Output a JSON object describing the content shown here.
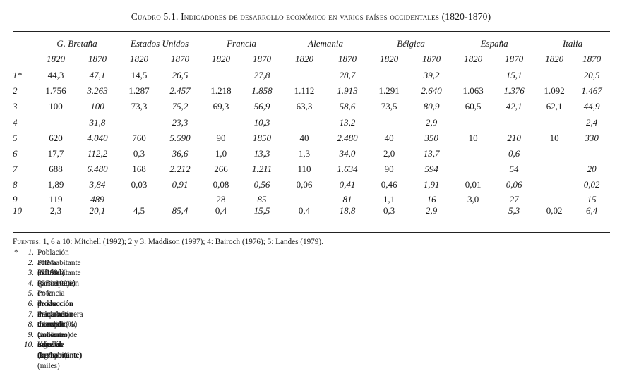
{
  "title": "Cuadro 5.1. Indicadores de desarrollo económico en varios países occidentales (1820-1870)",
  "countries": [
    "G. Bretaña",
    "Estados Unidos",
    "Francia",
    "Alemania",
    "Bélgica",
    "España",
    "Italia"
  ],
  "years": [
    "1820",
    "1870"
  ],
  "rows": [
    {
      "idx": "1*",
      "cells": [
        "44,3",
        "47,1",
        "14,5",
        "26,5",
        "",
        "27,8",
        "",
        "28,7",
        "",
        "39,2",
        "",
        "15,1",
        "",
        "20,5"
      ]
    },
    {
      "idx": "2",
      "cells": [
        "1.756",
        "3.263",
        "1.287",
        "2.457",
        "1.218",
        "1.858",
        "1.112",
        "1.913",
        "1.291",
        "2.640",
        "1.063",
        "1.376",
        "1.092",
        "1.467"
      ]
    },
    {
      "idx": "3",
      "cells": [
        "100",
        "100",
        "73,3",
        "75,2",
        "69,3",
        "56,9",
        "63,3",
        "58,6",
        "73,5",
        "80,9",
        "60,5",
        "42,1",
        "62,1",
        "44,9"
      ]
    },
    {
      "idx": "4",
      "cells": [
        "",
        "31,8",
        "",
        "23,3",
        "",
        "10,3",
        "",
        "13,2",
        "",
        "2,9",
        "",
        "",
        "",
        "2,4"
      ]
    },
    {
      "idx": "5",
      "cells": [
        "620",
        "4.040",
        "760",
        "5.590",
        "90",
        "1850",
        "40",
        "2.480",
        "40",
        "350",
        "10",
        "210",
        "10",
        "330"
      ]
    },
    {
      "idx": "6",
      "cells": [
        "17,7",
        "112,2",
        "0,3",
        "36,6",
        "1,0",
        "13,3",
        "1,3",
        "34,0",
        "2,0",
        "13,7",
        "",
        "0,6",
        "",
        ""
      ]
    },
    {
      "idx": "7",
      "cells": [
        "688",
        "6.480",
        "168",
        "2.212",
        "266",
        "1.211",
        "110",
        "1.634",
        "90",
        "594",
        "",
        "54",
        "",
        "20"
      ]
    },
    {
      "idx": "8",
      "cells": [
        "1,89",
        "3,84",
        "0,03",
        "0,91",
        "0,08",
        "0,56",
        "0,06",
        "0,41",
        "0,46",
        "1,91",
        "0,01",
        "0,06",
        "",
        "0,02"
      ]
    },
    {
      "idx": "9",
      "cells": [
        "119",
        "489",
        "",
        "",
        "28",
        "85",
        "",
        "81",
        "1,1",
        "16",
        "3,0",
        "27",
        "",
        "15"
      ]
    },
    {
      "idx": "10",
      "cells": [
        "2,3",
        "20,1",
        "4,5",
        "85,4",
        "0,4",
        "15,5",
        "0,4",
        "18,8",
        "0,3",
        "2,9",
        "",
        "5,3",
        "0,02",
        "6,4"
      ]
    }
  ],
  "sources_label": "Fuentes",
  "sources_text": ": 1, 6 a 10: Mitchell (1992); 2 y 3: Maddison (1997); 4: Bairoch (1976); 5: Landes (1979).",
  "notes_star": "*",
  "notes": [
    {
      "n": "1.",
      "text": "Población activa industrial (porcentaje)"
    },
    {
      "n": "2.",
      "text": "PIB/habitante ($ 1990)"
    },
    {
      "n": "3.",
      "text": "PIB/habitante (GB=100)"
    },
    {
      "n": "4.",
      "text": "Participación en la producción manufacturera mundial (%)"
    },
    {
      "n": "5.",
      "text": "Potencia de las máquinas de vapor (miles caballos de vapor)"
    },
    {
      "n": "6.",
      "text": "Producción de carbón mineral (millones tm)"
    },
    {
      "n": "7.",
      "text": "Producción de arrabio (miles tm)"
    },
    {
      "n": "8.",
      "text": "Consumo de carbón mineral (tm/habitante)"
    },
    {
      "n": "9.",
      "text": "Consumo de algodón (kg/habitante)"
    },
    {
      "n": "10.",
      "text": "Kms. de ferrocarril (miles)"
    }
  ]
}
